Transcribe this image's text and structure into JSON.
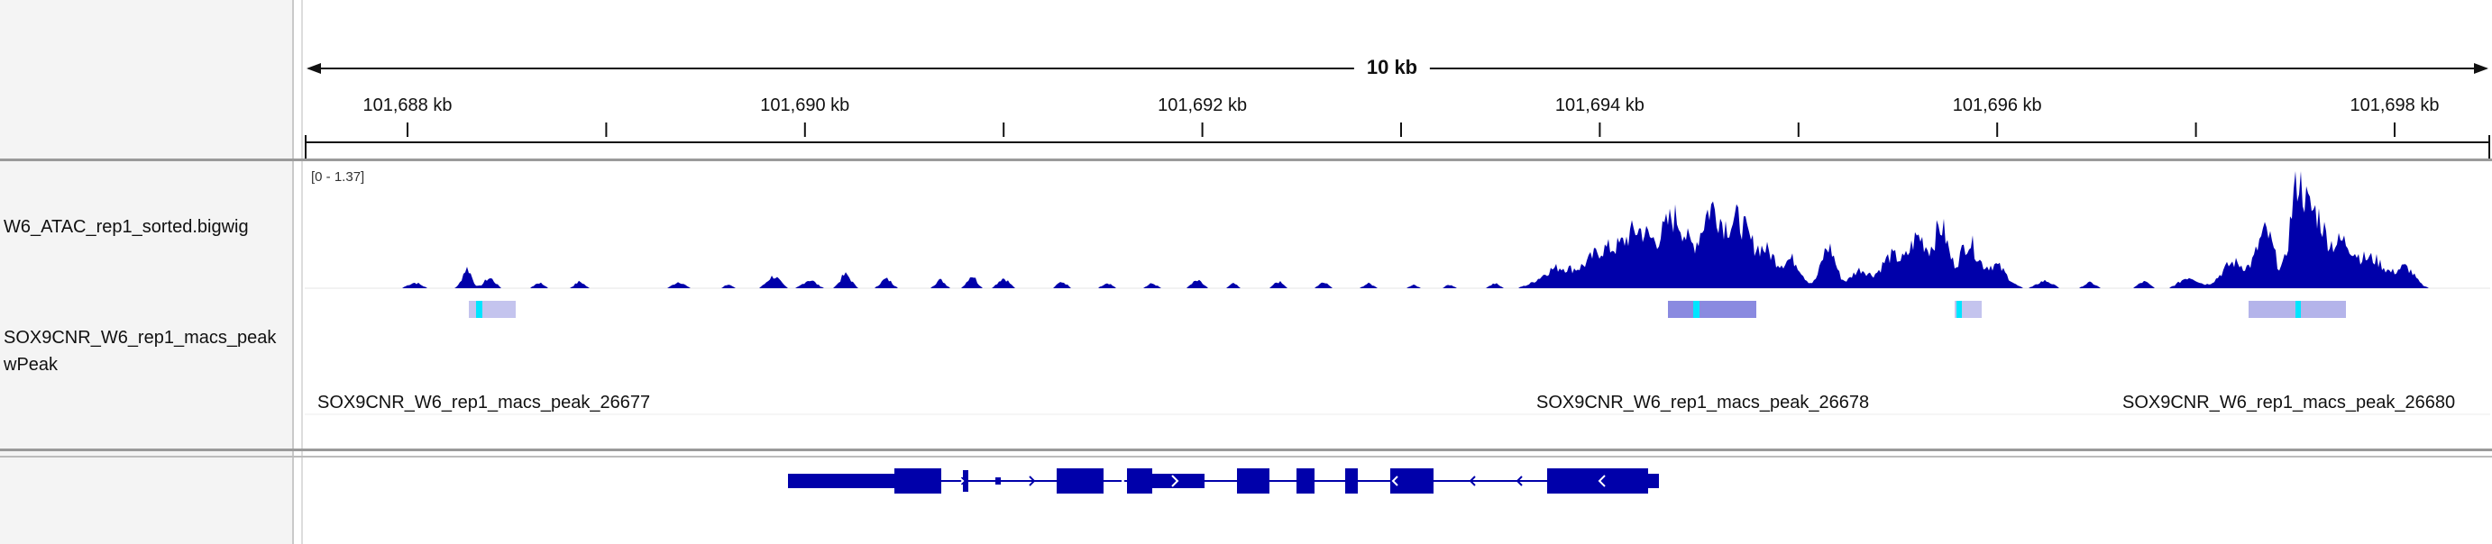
{
  "ruler": {
    "span_label": "10 kb",
    "ticks": [
      {
        "label": "101,688 kb",
        "labeled": true
      },
      {
        "label": "",
        "labeled": false
      },
      {
        "label": "101,690 kb",
        "labeled": true
      },
      {
        "label": "",
        "labeled": false
      },
      {
        "label": "101,692 kb",
        "labeled": true
      },
      {
        "label": "",
        "labeled": false
      },
      {
        "label": "101,694 kb",
        "labeled": true
      },
      {
        "label": "",
        "labeled": false
      },
      {
        "label": "101,696 kb",
        "labeled": true
      },
      {
        "label": "",
        "labeled": false
      },
      {
        "label": "101,698 kb",
        "labeled": true
      }
    ]
  },
  "tracks": {
    "bigwig": {
      "name": "W6_ATAC_rep1_sorted.bigwig",
      "data_range": "[0 - 1.37]",
      "color": "#0000aa"
    },
    "peaks": {
      "name_line1": "SOX9CNR_W6_rep1_macs_peak",
      "name_line2": "wPeak",
      "features": [
        {
          "name": "SOX9CNR_W6_rep1_macs_peak_26677"
        },
        {
          "name": "SOX9CNR_W6_rep1_macs_peak_26678"
        },
        {
          "name": "SOX9CNR_W6_rep1_macs_peak_26680"
        }
      ],
      "peak_color": "#c4c4ee",
      "summit_color": "#00e5ff"
    },
    "genes": {
      "color": "#0000aa"
    }
  }
}
